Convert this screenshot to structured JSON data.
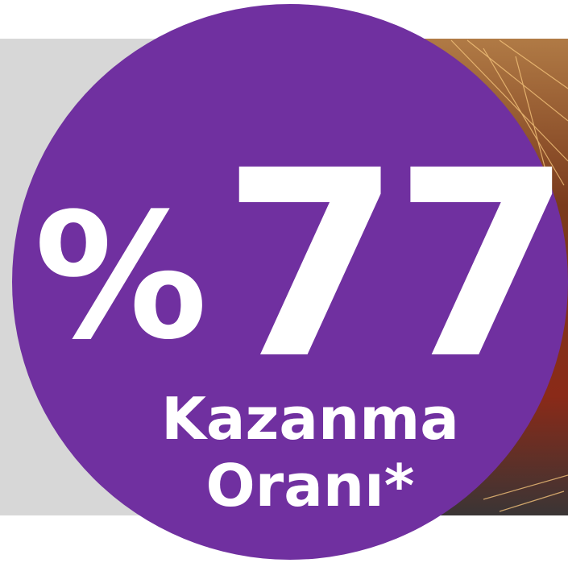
{
  "badge": {
    "percent_sign": "%",
    "number": "77",
    "line1": "Kazanma",
    "line2": "Oranı*"
  }
}
